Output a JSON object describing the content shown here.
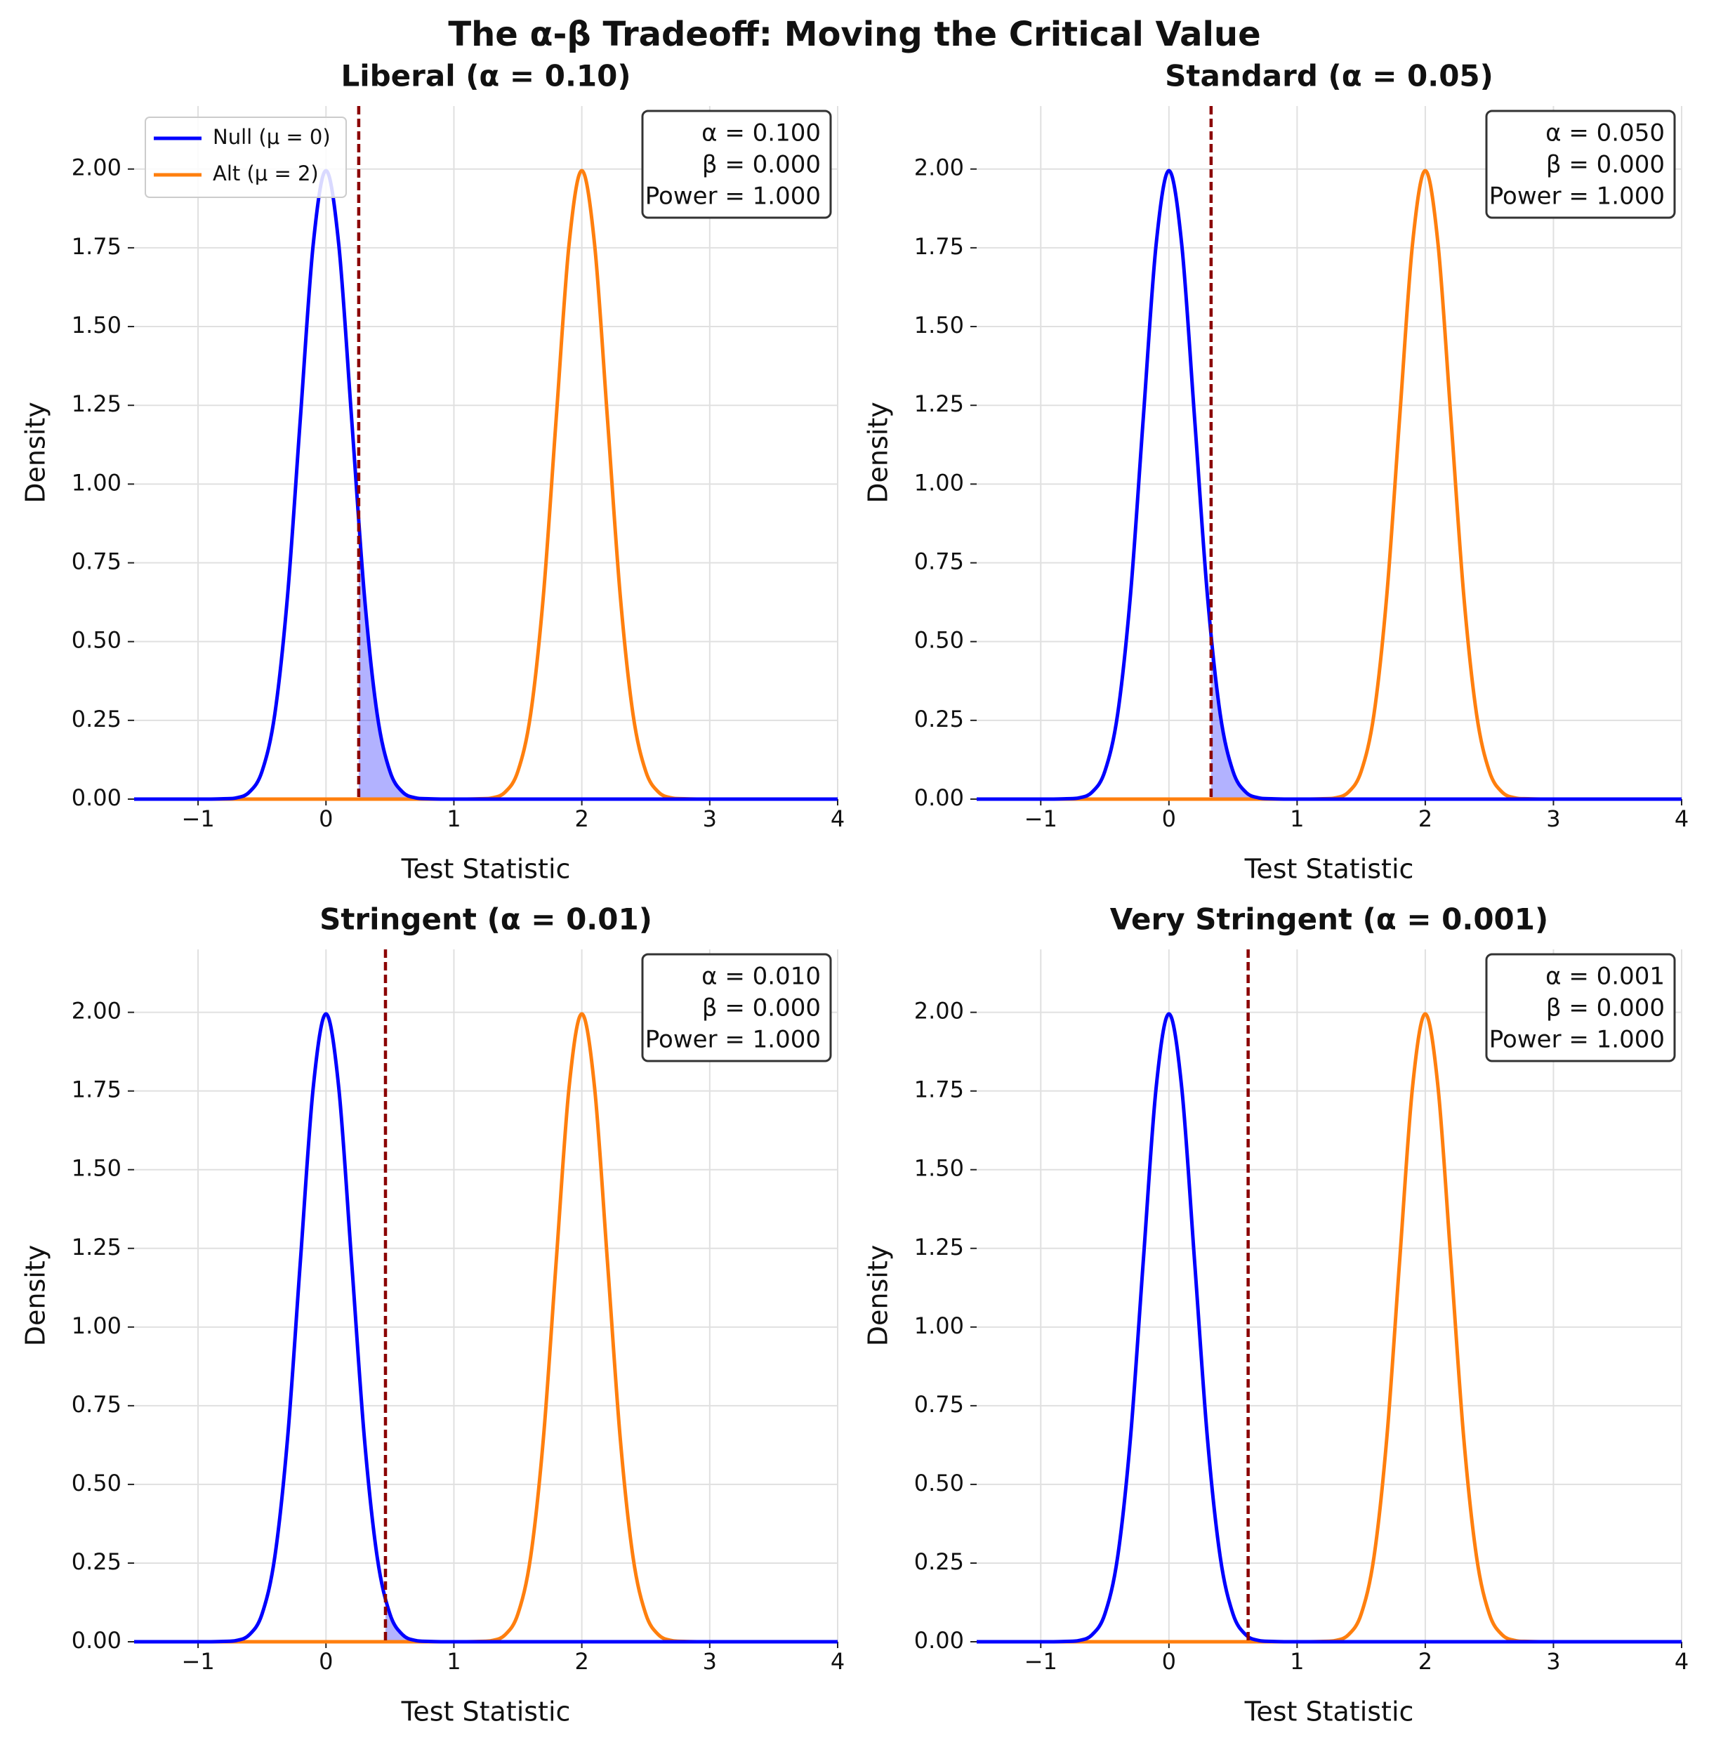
{
  "title": "The α-β Tradeoff: Moving the Critical Value",
  "chart_data": [
    {
      "type": "line",
      "title": "Liberal (α = 0.10)",
      "xlabel": "Test Statistic",
      "ylabel": "Density",
      "x": [
        -1.5,
        -1.4,
        -1.3,
        -1.2,
        -1.1,
        -1.0,
        -0.9,
        -0.8,
        -0.7,
        -0.6,
        -0.5,
        -0.4,
        -0.3,
        -0.2,
        -0.1,
        0,
        0.1,
        0.2,
        0.3,
        0.4,
        0.5,
        0.6,
        0.7,
        0.8,
        0.9,
        1.0,
        1.1,
        1.2,
        1.3,
        1.4,
        1.5,
        1.6,
        1.7,
        1.8,
        1.9,
        2.0,
        2.1,
        2.2,
        2.3,
        2.4,
        2.5,
        2.6,
        2.7,
        2.8,
        2.9,
        3.0,
        3.1,
        3.2,
        3.3,
        3.4,
        3.5,
        3.6,
        3.7,
        3.8,
        3.9,
        4.0
      ],
      "series": [
        {
          "name": "Null (μ = 0)",
          "color": "#0000ff",
          "values": [
            0,
            0,
            0,
            0,
            0,
            0,
            0,
            0.001,
            0.004,
            0.022,
            0.088,
            0.27,
            0.648,
            1.21,
            1.76,
            1.995,
            1.76,
            1.21,
            0.648,
            0.27,
            0.088,
            0.022,
            0.004,
            0.001,
            0,
            0,
            0,
            0,
            0,
            0,
            0,
            0,
            0,
            0,
            0,
            0,
            0,
            0,
            0,
            0,
            0,
            0,
            0,
            0,
            0,
            0,
            0,
            0,
            0,
            0,
            0,
            0,
            0,
            0,
            0,
            0
          ]
        },
        {
          "name": "Alt (μ = 2)",
          "color": "#ff7f0e",
          "values": [
            0,
            0,
            0,
            0,
            0,
            0,
            0,
            0,
            0,
            0,
            0,
            0,
            0,
            0,
            0,
            0,
            0,
            0,
            0,
            0,
            0,
            0,
            0,
            0,
            0,
            0,
            0,
            0.001,
            0.004,
            0.022,
            0.088,
            0.27,
            0.648,
            1.21,
            1.76,
            1.995,
            1.76,
            1.21,
            0.648,
            0.27,
            0.088,
            0.022,
            0.004,
            0.001,
            0,
            0,
            0,
            0,
            0,
            0,
            0,
            0,
            0,
            0,
            0,
            0
          ]
        }
      ],
      "critical_value": 0.256,
      "critical_color": "#8b0000",
      "annotation": [
        "α = 0.100",
        "β = 0.000",
        "Power = 1.000"
      ],
      "legend": "upper left",
      "xlim": [
        -1.5,
        4
      ],
      "ylim": [
        0,
        2.2
      ],
      "xticks": [
        {
          "value": -1,
          "label": "−1"
        },
        0,
        1,
        2,
        3,
        4
      ],
      "yticks": [
        {
          "value": 0,
          "label": "0.00"
        },
        {
          "value": 0.25,
          "label": "0.25"
        },
        {
          "value": 0.5,
          "label": "0.50"
        },
        {
          "value": 0.75,
          "label": "0.75"
        },
        {
          "value": 1,
          "label": "1.00"
        },
        {
          "value": 1.25,
          "label": "1.25"
        },
        {
          "value": 1.5,
          "label": "1.50"
        },
        {
          "value": 1.75,
          "label": "1.75"
        },
        {
          "value": 2,
          "label": "2.00"
        }
      ],
      "grid": true
    },
    {
      "type": "line",
      "title": "Standard (α = 0.05)",
      "xlabel": "Test Statistic",
      "ylabel": "Density",
      "x": [
        -1.5,
        -1.4,
        -1.3,
        -1.2,
        -1.1,
        -1.0,
        -0.9,
        -0.8,
        -0.7,
        -0.6,
        -0.5,
        -0.4,
        -0.3,
        -0.2,
        -0.1,
        0,
        0.1,
        0.2,
        0.3,
        0.4,
        0.5,
        0.6,
        0.7,
        0.8,
        0.9,
        1.0,
        1.1,
        1.2,
        1.3,
        1.4,
        1.5,
        1.6,
        1.7,
        1.8,
        1.9,
        2.0,
        2.1,
        2.2,
        2.3,
        2.4,
        2.5,
        2.6,
        2.7,
        2.8,
        2.9,
        3.0,
        3.1,
        3.2,
        3.3,
        3.4,
        3.5,
        3.6,
        3.7,
        3.8,
        3.9,
        4.0
      ],
      "series": [
        {
          "name": "Null (μ = 0)",
          "color": "#0000ff",
          "values": [
            0,
            0,
            0,
            0,
            0,
            0,
            0,
            0.001,
            0.004,
            0.022,
            0.088,
            0.27,
            0.648,
            1.21,
            1.76,
            1.995,
            1.76,
            1.21,
            0.648,
            0.27,
            0.088,
            0.022,
            0.004,
            0.001,
            0,
            0,
            0,
            0,
            0,
            0,
            0,
            0,
            0,
            0,
            0,
            0,
            0,
            0,
            0,
            0,
            0,
            0,
            0,
            0,
            0,
            0,
            0,
            0,
            0,
            0,
            0,
            0,
            0,
            0,
            0,
            0
          ]
        },
        {
          "name": "Alt (μ = 2)",
          "color": "#ff7f0e",
          "values": [
            0,
            0,
            0,
            0,
            0,
            0,
            0,
            0,
            0,
            0,
            0,
            0,
            0,
            0,
            0,
            0,
            0,
            0,
            0,
            0,
            0,
            0,
            0,
            0,
            0,
            0,
            0,
            0.001,
            0.004,
            0.022,
            0.088,
            0.27,
            0.648,
            1.21,
            1.76,
            1.995,
            1.76,
            1.21,
            0.648,
            0.27,
            0.088,
            0.022,
            0.004,
            0.001,
            0,
            0,
            0,
            0,
            0,
            0,
            0,
            0,
            0,
            0,
            0,
            0
          ]
        }
      ],
      "critical_value": 0.329,
      "critical_color": "#8b0000",
      "annotation": [
        "α = 0.050",
        "β = 0.000",
        "Power = 1.000"
      ],
      "xlim": [
        -1.5,
        4
      ],
      "ylim": [
        0,
        2.2
      ],
      "xticks": [
        {
          "value": -1,
          "label": "−1"
        },
        0,
        1,
        2,
        3,
        4
      ],
      "yticks": [
        {
          "value": 0,
          "label": "0.00"
        },
        {
          "value": 0.25,
          "label": "0.25"
        },
        {
          "value": 0.5,
          "label": "0.50"
        },
        {
          "value": 0.75,
          "label": "0.75"
        },
        {
          "value": 1,
          "label": "1.00"
        },
        {
          "value": 1.25,
          "label": "1.25"
        },
        {
          "value": 1.5,
          "label": "1.50"
        },
        {
          "value": 1.75,
          "label": "1.75"
        },
        {
          "value": 2,
          "label": "2.00"
        }
      ],
      "grid": true
    },
    {
      "type": "line",
      "title": "Stringent (α = 0.01)",
      "xlabel": "Test Statistic",
      "ylabel": "Density",
      "x": [
        -1.5,
        -1.4,
        -1.3,
        -1.2,
        -1.1,
        -1.0,
        -0.9,
        -0.8,
        -0.7,
        -0.6,
        -0.5,
        -0.4,
        -0.3,
        -0.2,
        -0.1,
        0,
        0.1,
        0.2,
        0.3,
        0.4,
        0.5,
        0.6,
        0.7,
        0.8,
        0.9,
        1.0,
        1.1,
        1.2,
        1.3,
        1.4,
        1.5,
        1.6,
        1.7,
        1.8,
        1.9,
        2.0,
        2.1,
        2.2,
        2.3,
        2.4,
        2.5,
        2.6,
        2.7,
        2.8,
        2.9,
        3.0,
        3.1,
        3.2,
        3.3,
        3.4,
        3.5,
        3.6,
        3.7,
        3.8,
        3.9,
        4.0
      ],
      "series": [
        {
          "name": "Null (μ = 0)",
          "color": "#0000ff",
          "values": [
            0,
            0,
            0,
            0,
            0,
            0,
            0,
            0.001,
            0.004,
            0.022,
            0.088,
            0.27,
            0.648,
            1.21,
            1.76,
            1.995,
            1.76,
            1.21,
            0.648,
            0.27,
            0.088,
            0.022,
            0.004,
            0.001,
            0,
            0,
            0,
            0,
            0,
            0,
            0,
            0,
            0,
            0,
            0,
            0,
            0,
            0,
            0,
            0,
            0,
            0,
            0,
            0,
            0,
            0,
            0,
            0,
            0,
            0,
            0,
            0,
            0,
            0,
            0,
            0
          ]
        },
        {
          "name": "Alt (μ = 2)",
          "color": "#ff7f0e",
          "values": [
            0,
            0,
            0,
            0,
            0,
            0,
            0,
            0,
            0,
            0,
            0,
            0,
            0,
            0,
            0,
            0,
            0,
            0,
            0,
            0,
            0,
            0,
            0,
            0,
            0,
            0,
            0,
            0.001,
            0.004,
            0.022,
            0.088,
            0.27,
            0.648,
            1.21,
            1.76,
            1.995,
            1.76,
            1.21,
            0.648,
            0.27,
            0.088,
            0.022,
            0.004,
            0.001,
            0,
            0,
            0,
            0,
            0,
            0,
            0,
            0,
            0,
            0,
            0,
            0
          ]
        }
      ],
      "critical_value": 0.465,
      "critical_color": "#8b0000",
      "annotation": [
        "α = 0.010",
        "β = 0.000",
        "Power = 1.000"
      ],
      "xlim": [
        -1.5,
        4
      ],
      "ylim": [
        0,
        2.2
      ],
      "xticks": [
        {
          "value": -1,
          "label": "−1"
        },
        0,
        1,
        2,
        3,
        4
      ],
      "yticks": [
        {
          "value": 0,
          "label": "0.00"
        },
        {
          "value": 0.25,
          "label": "0.25"
        },
        {
          "value": 0.5,
          "label": "0.50"
        },
        {
          "value": 0.75,
          "label": "0.75"
        },
        {
          "value": 1,
          "label": "1.00"
        },
        {
          "value": 1.25,
          "label": "1.25"
        },
        {
          "value": 1.5,
          "label": "1.50"
        },
        {
          "value": 1.75,
          "label": "1.75"
        },
        {
          "value": 2,
          "label": "2.00"
        }
      ],
      "grid": true
    },
    {
      "type": "line",
      "title": "Very Stringent (α = 0.001)",
      "xlabel": "Test Statistic",
      "ylabel": "Density",
      "x": [
        -1.5,
        -1.4,
        -1.3,
        -1.2,
        -1.1,
        -1.0,
        -0.9,
        -0.8,
        -0.7,
        -0.6,
        -0.5,
        -0.4,
        -0.3,
        -0.2,
        -0.1,
        0,
        0.1,
        0.2,
        0.3,
        0.4,
        0.5,
        0.6,
        0.7,
        0.8,
        0.9,
        1.0,
        1.1,
        1.2,
        1.3,
        1.4,
        1.5,
        1.6,
        1.7,
        1.8,
        1.9,
        2.0,
        2.1,
        2.2,
        2.3,
        2.4,
        2.5,
        2.6,
        2.7,
        2.8,
        2.9,
        3.0,
        3.1,
        3.2,
        3.3,
        3.4,
        3.5,
        3.6,
        3.7,
        3.8,
        3.9,
        4.0
      ],
      "series": [
        {
          "name": "Null (μ = 0)",
          "color": "#0000ff",
          "values": [
            0,
            0,
            0,
            0,
            0,
            0,
            0,
            0.001,
            0.004,
            0.022,
            0.088,
            0.27,
            0.648,
            1.21,
            1.76,
            1.995,
            1.76,
            1.21,
            0.648,
            0.27,
            0.088,
            0.022,
            0.004,
            0.001,
            0,
            0,
            0,
            0,
            0,
            0,
            0,
            0,
            0,
            0,
            0,
            0,
            0,
            0,
            0,
            0,
            0,
            0,
            0,
            0,
            0,
            0,
            0,
            0,
            0,
            0,
            0,
            0,
            0,
            0,
            0,
            0
          ]
        },
        {
          "name": "Alt (μ = 2)",
          "color": "#ff7f0e",
          "values": [
            0,
            0,
            0,
            0,
            0,
            0,
            0,
            0,
            0,
            0,
            0,
            0,
            0,
            0,
            0,
            0,
            0,
            0,
            0,
            0,
            0,
            0,
            0,
            0,
            0,
            0,
            0,
            0.001,
            0.004,
            0.022,
            0.088,
            0.27,
            0.648,
            1.21,
            1.76,
            1.995,
            1.76,
            1.21,
            0.648,
            0.27,
            0.088,
            0.022,
            0.004,
            0.001,
            0,
            0,
            0,
            0,
            0,
            0,
            0,
            0,
            0,
            0,
            0,
            0
          ]
        }
      ],
      "critical_value": 0.618,
      "critical_color": "#8b0000",
      "annotation": [
        "α = 0.001",
        "β = 0.000",
        "Power = 1.000"
      ],
      "xlim": [
        -1.5,
        4
      ],
      "ylim": [
        0,
        2.2
      ],
      "xticks": [
        {
          "value": -1,
          "label": "−1"
        },
        0,
        1,
        2,
        3,
        4
      ],
      "yticks": [
        {
          "value": 0,
          "label": "0.00"
        },
        {
          "value": 0.25,
          "label": "0.25"
        },
        {
          "value": 0.5,
          "label": "0.50"
        },
        {
          "value": 0.75,
          "label": "0.75"
        },
        {
          "value": 1,
          "label": "1.00"
        },
        {
          "value": 1.25,
          "label": "1.25"
        },
        {
          "value": 1.5,
          "label": "1.50"
        },
        {
          "value": 1.75,
          "label": "1.75"
        },
        {
          "value": 2,
          "label": "2.00"
        }
      ],
      "grid": true
    }
  ]
}
